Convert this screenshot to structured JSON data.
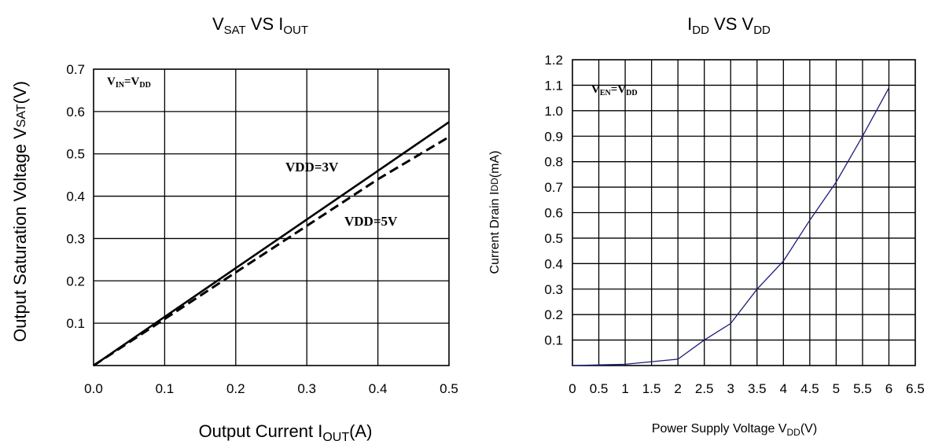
{
  "chart_data": [
    {
      "type": "line",
      "title": {
        "main1": "V",
        "sub1": "SAT",
        "main2": " VS I",
        "sub2": "OUT"
      },
      "xlabel": {
        "main": "Output Current I",
        "sub": "OUT",
        "tail": "(A)"
      },
      "ylabel": {
        "main": "Output Saturation Voltage V",
        "sub": "SAT",
        "tail": "(V)"
      },
      "xlim": [
        0,
        0.5
      ],
      "ylim": [
        0,
        0.7
      ],
      "x_ticks": [
        "0.0",
        "0.1",
        "0.2",
        "0.3",
        "0.4",
        "0.5"
      ],
      "y_ticks": [
        "0.1",
        "0.2",
        "0.3",
        "0.4",
        "0.5",
        "0.6",
        "0.7"
      ],
      "grid": true,
      "condition": {
        "a": "V",
        "a_sub": "IN",
        "eq": "=V",
        "b_sub": "DD"
      },
      "series": [
        {
          "name": "VDD=3V",
          "style": "solid",
          "color": "#000000",
          "x": [
            0,
            0.1,
            0.2,
            0.3,
            0.4,
            0.5
          ],
          "y": [
            0,
            0.115,
            0.23,
            0.345,
            0.46,
            0.575
          ]
        },
        {
          "name": "VDD=5V",
          "style": "dashed",
          "color": "#000000",
          "x": [
            0,
            0.1,
            0.2,
            0.3,
            0.4,
            0.5
          ],
          "y": [
            0,
            0.11,
            0.22,
            0.33,
            0.44,
            0.54
          ]
        }
      ]
    },
    {
      "type": "line",
      "title": {
        "main1": "I",
        "sub1": "DD",
        "main2": " VS V",
        "sub2": "DD"
      },
      "xlabel": {
        "main": "Power Supply Voltage V",
        "sub": "DD",
        "tail": "(V)"
      },
      "ylabel": {
        "main": "Current Drain I",
        "sub": "DD",
        "tail": "(mA)"
      },
      "xlim": [
        0,
        6.5
      ],
      "ylim": [
        0,
        1.2
      ],
      "x_ticks": [
        "0",
        "0.5",
        "1",
        "1.5",
        "2",
        "2.5",
        "3",
        "3.5",
        "4",
        "4.5",
        "5",
        "5.5",
        "6",
        "6.5"
      ],
      "y_ticks": [
        "0.1",
        "0.2",
        "0.3",
        "0.4",
        "0.5",
        "0.6",
        "0.7",
        "0.8",
        "0.9",
        "1.0",
        "1.1",
        "1.2"
      ],
      "grid": true,
      "condition": {
        "a": "V",
        "a_sub": "EN",
        "eq": "=V",
        "b_sub": "DD"
      },
      "series": [
        {
          "name": "",
          "style": "solid",
          "color": "#1c1c7a",
          "x": [
            0,
            1,
            2,
            2.5,
            3,
            3.5,
            4,
            4.5,
            5,
            5.5,
            6
          ],
          "y": [
            0,
            0.005,
            0.025,
            0.1,
            0.165,
            0.3,
            0.41,
            0.57,
            0.72,
            0.9,
            1.09
          ]
        }
      ]
    }
  ]
}
